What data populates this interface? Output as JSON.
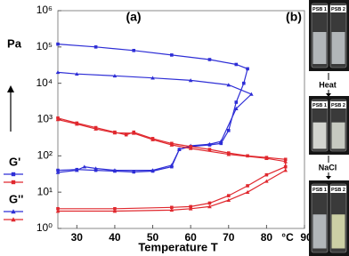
{
  "chart_data": {
    "type": "line",
    "panel_label": "(a)",
    "x_label": "Temperature T",
    "x_unit": "°C",
    "y_unit": "Pa",
    "xlim": [
      25,
      90
    ],
    "xticks": [
      30,
      40,
      50,
      60,
      70,
      80,
      90
    ],
    "ylim": [
      1,
      1000000
    ],
    "log_y": true,
    "yticks": [
      {
        "value": 1,
        "label": "10⁰"
      },
      {
        "value": 10,
        "label": "10¹"
      },
      {
        "value": 100,
        "label": "10²"
      },
      {
        "value": 1000,
        "label": "10³"
      },
      {
        "value": 10000,
        "label": "10⁴"
      },
      {
        "value": 100000,
        "label": "10⁵"
      },
      {
        "value": 1000000,
        "label": "10⁶"
      }
    ],
    "series": [
      {
        "name": "G'",
        "color": "#2e2ed6",
        "marker": "square",
        "x": [
          25,
          30,
          35,
          40,
          45,
          50,
          55,
          57,
          60,
          65,
          68,
          70,
          72,
          74,
          75,
          72,
          65,
          55,
          45,
          35,
          25
        ],
        "values": [
          40,
          42,
          40,
          38,
          36,
          38,
          50,
          150,
          180,
          200,
          220,
          500,
          3000,
          10000,
          25000,
          33000,
          45000,
          60000,
          80000,
          100000,
          120000
        ]
      },
      {
        "name": "G''",
        "color": "#2e2ed6",
        "marker": "triangle",
        "x": [
          25,
          30,
          32,
          35,
          40,
          50,
          55,
          57,
          60,
          65,
          68,
          72,
          76,
          70,
          60,
          50,
          40,
          30,
          25
        ],
        "values": [
          35,
          40,
          50,
          45,
          40,
          40,
          55,
          150,
          190,
          210,
          250,
          2000,
          5000,
          9000,
          12000,
          14000,
          16000,
          18000,
          20000
        ]
      },
      {
        "color": "#e0282e",
        "marker": "square",
        "x": [
          25,
          40,
          55,
          60,
          65,
          70,
          75,
          80,
          85,
          85,
          80,
          75,
          70,
          65,
          60,
          55,
          50,
          45,
          43,
          40,
          35,
          30,
          25
        ],
        "values": [
          3.5,
          3.5,
          3.8,
          4,
          5,
          8,
          15,
          30,
          50,
          80,
          90,
          100,
          120,
          150,
          180,
          220,
          300,
          450,
          380,
          450,
          600,
          800,
          1100
        ]
      },
      {
        "color": "#e0282e",
        "marker": "triangle",
        "x": [
          25,
          40,
          55,
          60,
          65,
          70,
          75,
          80,
          85,
          85,
          80,
          70,
          60,
          55,
          50,
          45,
          40,
          35,
          30,
          25
        ],
        "values": [
          3,
          3,
          3.2,
          3.5,
          4,
          6,
          10,
          20,
          40,
          70,
          85,
          110,
          160,
          200,
          280,
          420,
          430,
          550,
          750,
          1000
        ]
      }
    ]
  },
  "photos": {
    "panel_label": "(b)",
    "vials": [
      "PSB 1",
      "PSB 2"
    ],
    "steps": [
      "Heat",
      "NaCl"
    ]
  }
}
